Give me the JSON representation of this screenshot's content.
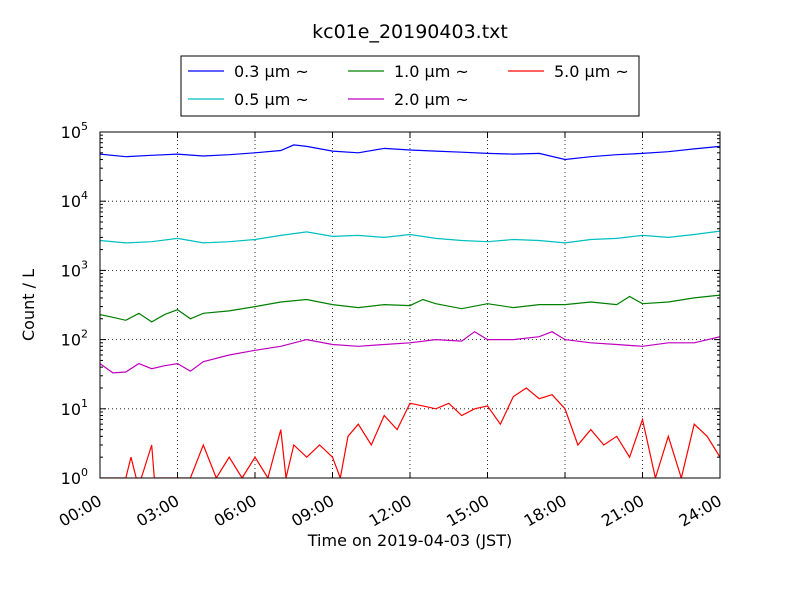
{
  "chart_data": {
    "type": "line",
    "title": "kc01e_20190403.txt",
    "xlabel": "Time on 2019-04-03 (JST)",
    "ylabel": "Count / L",
    "yscale": "log",
    "ylim": [
      1,
      100000
    ],
    "y_ticks": [
      {
        "value": 1,
        "base": "10",
        "exp": "0"
      },
      {
        "value": 10,
        "base": "10",
        "exp": "1"
      },
      {
        "value": 100,
        "base": "10",
        "exp": "2"
      },
      {
        "value": 1000,
        "base": "10",
        "exp": "3"
      },
      {
        "value": 10000,
        "base": "10",
        "exp": "4"
      },
      {
        "value": 100000,
        "base": "10",
        "exp": "5"
      }
    ],
    "x_ticks": [
      {
        "value": 0,
        "label": "00:00"
      },
      {
        "value": 3,
        "label": "03:00"
      },
      {
        "value": 6,
        "label": "06:00"
      },
      {
        "value": 9,
        "label": "09:00"
      },
      {
        "value": 12,
        "label": "12:00"
      },
      {
        "value": 15,
        "label": "15:00"
      },
      {
        "value": 18,
        "label": "18:00"
      },
      {
        "value": 21,
        "label": "21:00"
      },
      {
        "value": 24,
        "label": "24:00"
      }
    ],
    "xlim_hours": [
      0,
      24
    ],
    "grid": "dotted",
    "legend_position": "top-center",
    "series": [
      {
        "name": "0.3 μm ~",
        "color": "#0000ff",
        "x": [
          0,
          1,
          2,
          3,
          4,
          5,
          6,
          7,
          7.5,
          8,
          9,
          10,
          11,
          12,
          13,
          14,
          15,
          16,
          17,
          18,
          19,
          20,
          21,
          22,
          23,
          24
        ],
        "y": [
          48000,
          44000,
          46000,
          48000,
          45000,
          47000,
          50000,
          54000,
          65000,
          62000,
          53000,
          50000,
          58000,
          55000,
          53000,
          51000,
          49000,
          48000,
          49000,
          40000,
          44000,
          47000,
          49000,
          52000,
          57000,
          62000
        ]
      },
      {
        "name": "0.5 μm ~",
        "color": "#00bfbf",
        "x": [
          0,
          1,
          2,
          3,
          4,
          5,
          6,
          7,
          8,
          9,
          10,
          11,
          12,
          13,
          14,
          15,
          16,
          17,
          18,
          19,
          20,
          21,
          22,
          23,
          24
        ],
        "y": [
          2700,
          2500,
          2600,
          2900,
          2500,
          2600,
          2800,
          3200,
          3600,
          3100,
          3200,
          3000,
          3300,
          2900,
          2700,
          2600,
          2800,
          2700,
          2500,
          2800,
          2900,
          3200,
          3000,
          3300,
          3700
        ]
      },
      {
        "name": "1.0 μm ~",
        "color": "#008000",
        "x": [
          0,
          0.5,
          1,
          1.5,
          2,
          2.5,
          3,
          3.5,
          4,
          5,
          6,
          7,
          8,
          9,
          10,
          11,
          12,
          12.5,
          13,
          14,
          15,
          16,
          17,
          18,
          19,
          20,
          20.5,
          21,
          22,
          23,
          24
        ],
        "y": [
          230,
          210,
          190,
          240,
          180,
          230,
          270,
          200,
          240,
          260,
          300,
          350,
          380,
          320,
          290,
          320,
          310,
          380,
          330,
          280,
          330,
          290,
          320,
          320,
          350,
          320,
          420,
          330,
          350,
          400,
          440
        ]
      },
      {
        "name": "2.0 μm ~",
        "color": "#bf00bf",
        "x": [
          0,
          0.5,
          1,
          1.5,
          2,
          2.5,
          3,
          3.5,
          4,
          5,
          6,
          7,
          8,
          9,
          10,
          11,
          12,
          13,
          14,
          14.5,
          15,
          16,
          17,
          17.5,
          18,
          19,
          20,
          21,
          22,
          23,
          24
        ],
        "y": [
          45,
          33,
          34,
          45,
          38,
          42,
          45,
          35,
          48,
          60,
          70,
          80,
          100,
          85,
          80,
          85,
          90,
          100,
          95,
          130,
          100,
          100,
          110,
          130,
          100,
          90,
          85,
          80,
          90,
          90,
          110
        ]
      },
      {
        "name": "5.0 μm ~",
        "color": "#ff0000",
        "x": [
          0,
          1,
          1.2,
          1.4,
          1.6,
          2,
          2.1,
          2.2,
          3,
          3.5,
          4,
          4.5,
          5,
          5.5,
          6,
          6.5,
          7,
          7.2,
          7.5,
          8,
          8.5,
          9,
          9.3,
          9.6,
          10,
          10.5,
          11,
          11.5,
          12,
          12.5,
          13,
          13.5,
          14,
          14.5,
          15,
          15.5,
          16,
          16.5,
          17,
          17.5,
          18,
          18.5,
          19,
          19.5,
          20,
          20.5,
          21,
          21.5,
          22,
          22.5,
          23,
          23.5,
          24
        ],
        "y": [
          1,
          1,
          2,
          1,
          1,
          3,
          1,
          1,
          1,
          1,
          3,
          1,
          2,
          1,
          2,
          1,
          5,
          1,
          3,
          2,
          3,
          2,
          1,
          4,
          6,
          3,
          8,
          5,
          12,
          11,
          10,
          12,
          8,
          10,
          11,
          6,
          15,
          20,
          14,
          16,
          10,
          3,
          5,
          3,
          4,
          2,
          7,
          1,
          4,
          1,
          6,
          4,
          2
        ]
      }
    ]
  }
}
